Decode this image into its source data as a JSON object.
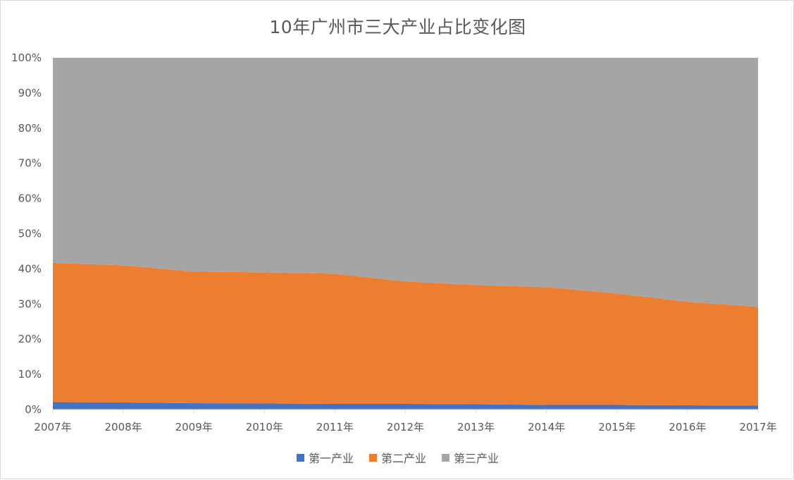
{
  "chart_data": {
    "type": "area",
    "stacked": "percent",
    "title": "10年广州市三大产业占比变化图",
    "xlabel": "",
    "ylabel": "",
    "categories": [
      "2007年",
      "2008年",
      "2009年",
      "2010年",
      "2011年",
      "2012年",
      "2013年",
      "2014年",
      "2015年",
      "2016年",
      "2017年"
    ],
    "y_ticks": [
      "0%",
      "10%",
      "20%",
      "30%",
      "40%",
      "50%",
      "60%",
      "70%",
      "80%",
      "90%",
      "100%"
    ],
    "ylim": [
      0,
      100
    ],
    "grid": false,
    "legend_position": "bottom",
    "series": [
      {
        "name": "第一产业",
        "color": "#4472c4",
        "values": [
          2.1,
          2.0,
          1.8,
          1.7,
          1.6,
          1.6,
          1.5,
          1.3,
          1.3,
          1.2,
          1.1
        ]
      },
      {
        "name": "第二产业",
        "color": "#ed7d31",
        "values": [
          39.6,
          39.0,
          37.4,
          37.3,
          37.0,
          34.8,
          33.9,
          33.5,
          31.7,
          29.4,
          28.1
        ]
      },
      {
        "name": "第三产业",
        "color": "#a5a5a5",
        "values": [
          58.3,
          59.0,
          60.8,
          61.0,
          61.4,
          63.6,
          64.6,
          65.2,
          67.0,
          69.4,
          70.8
        ]
      }
    ]
  }
}
